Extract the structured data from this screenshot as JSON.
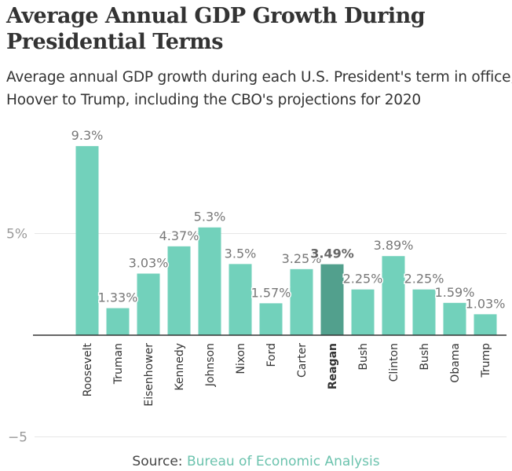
{
  "chart_data": {
    "type": "bar",
    "title": "Average Annual GDP Growth During Presidential Terms",
    "subtitle": "Average annual GDP growth during each U.S. President's term in office, Hoover to Trump, including the CBO's projections for 2020",
    "categories": [
      "Roosevelt",
      "Truman",
      "Eisenhower",
      "Kennedy",
      "Johnson",
      "Nixon",
      "Ford",
      "Carter",
      "Reagan",
      "Bush",
      "Clinton",
      "Bush",
      "Obama",
      "Trump"
    ],
    "values": [
      9.3,
      1.33,
      3.03,
      4.37,
      5.3,
      3.5,
      1.57,
      3.25,
      3.49,
      2.25,
      3.89,
      2.25,
      1.59,
      1.03
    ],
    "data_labels": [
      "9.3%",
      "1.33%",
      "3.03%",
      "4.37%",
      "5.3%",
      "3.5%",
      "1.57%",
      "3.25%",
      "3.49%",
      "2.25%",
      "3.89%",
      "2.25%",
      "1.59%",
      "1.03%"
    ],
    "highlighted": "Reagan",
    "yticks": [
      {
        "value": 5,
        "label": "5%"
      },
      {
        "value": -5,
        "label": "−5"
      }
    ],
    "ylim": [
      -5,
      9.3
    ],
    "grid": true,
    "colors": {
      "bar": "#72d1bb",
      "highlight": "#52a08d",
      "text": "#777777"
    }
  },
  "source": {
    "prefix": "Source: ",
    "link": "Bureau of Economic Analysis"
  }
}
